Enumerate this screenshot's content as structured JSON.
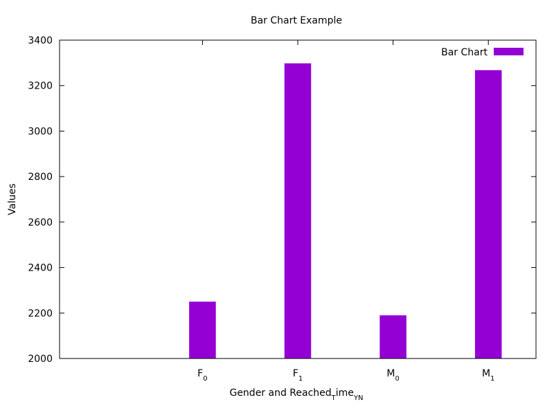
{
  "chart_data": {
    "type": "bar",
    "title": "Bar Chart Example",
    "categories": [
      {
        "base": "F",
        "sub": "0"
      },
      {
        "base": "F",
        "sub": "1"
      },
      {
        "base": "M",
        "sub": "0"
      },
      {
        "base": "M",
        "sub": "1"
      }
    ],
    "series": [
      {
        "name": "Bar Chart",
        "values": [
          2250,
          3298,
          2190,
          3268
        ]
      }
    ],
    "xlabel": {
      "parts": [
        "Gender and Reached",
        "T",
        "ime",
        "YN"
      ]
    },
    "ylabel": "Values",
    "ylim": [
      2000,
      3400
    ],
    "yticks": [
      2000,
      2200,
      2400,
      2600,
      2800,
      3000,
      3200,
      3400
    ],
    "x_range": [
      -1,
      4
    ],
    "x_positions": [
      0.5,
      1.5,
      2.5,
      3.5
    ],
    "bar_width": 0.28,
    "bar_color": "#9400d3",
    "legend_position": "top-right",
    "grid": false
  }
}
